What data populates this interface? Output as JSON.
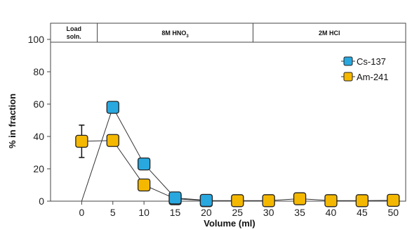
{
  "chart_data": {
    "type": "line",
    "x": [
      0,
      5,
      10,
      15,
      20,
      25,
      30,
      35,
      40,
      45,
      50
    ],
    "xticks": [
      "0",
      "5",
      "10",
      "15",
      "20",
      "25",
      "30",
      "35",
      "40",
      "45",
      "50"
    ],
    "yticks": [
      "0",
      "20",
      "40",
      "60",
      "80",
      "100"
    ],
    "xlim": [
      -5,
      52
    ],
    "ylim": [
      0,
      110
    ],
    "xlabel": "Volume (ml)",
    "ylabel": "% in fraction",
    "legend_position": "top-right",
    "grid": false,
    "series": [
      {
        "name": "Cs-137",
        "color": "#29a8e0",
        "marker": "square",
        "x": [
          0,
          5,
          10,
          15,
          20
        ],
        "values": [
          0,
          58,
          23,
          2,
          0.5
        ],
        "show_markers": [
          false,
          true,
          true,
          true,
          true
        ]
      },
      {
        "name": "Am-241",
        "color": "#f5b800",
        "marker": "square",
        "x": [
          0,
          5,
          10,
          15,
          20,
          25,
          30,
          35,
          40,
          45,
          50
        ],
        "values": [
          37,
          37.5,
          10,
          1.5,
          0.3,
          0.3,
          0.3,
          1.5,
          0.3,
          0.3,
          0.5
        ],
        "error": [
          10,
          0,
          0,
          0,
          0,
          0,
          0,
          0,
          0,
          0,
          0
        ]
      }
    ],
    "segments": [
      {
        "label": [
          "Load",
          "soln."
        ],
        "x_end": 2.5
      },
      {
        "label": [
          "8M HNO",
          "3"
        ],
        "x_end": 27.5
      },
      {
        "label": [
          "2M HCl"
        ],
        "x_end": 52
      }
    ]
  }
}
